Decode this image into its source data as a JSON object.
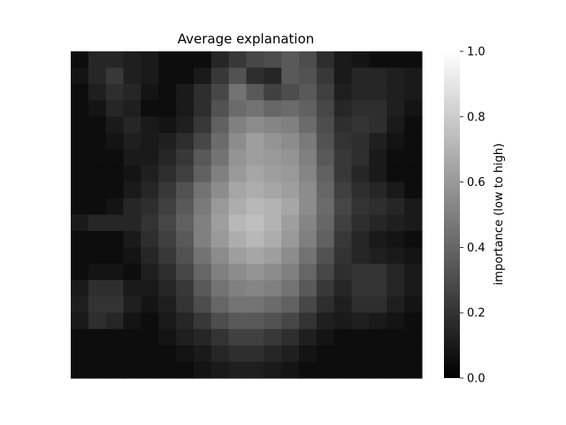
{
  "chart_data": {
    "type": "heatmap",
    "title": "Average explanation",
    "xlabel": "",
    "ylabel": "",
    "grid": false,
    "colormap": "gray",
    "color_low": "#000000",
    "color_high": "#ffffff",
    "colorbar": {
      "label": "importance (low to high)",
      "range": [
        0.0,
        1.0
      ],
      "ticks": [
        0.0,
        0.2,
        0.4,
        0.6,
        0.8,
        1.0
      ],
      "tick_labels": [
        "0.0",
        "0.2",
        "0.4",
        "0.6",
        "0.8",
        "1.0"
      ],
      "placement": "right"
    },
    "grid_rows": 20,
    "grid_cols": 20,
    "values": [
      [
        0.05,
        0.15,
        0.15,
        0.12,
        0.1,
        0.05,
        0.05,
        0.05,
        0.15,
        0.22,
        0.28,
        0.3,
        0.35,
        0.3,
        0.18,
        0.1,
        0.08,
        0.05,
        0.05,
        0.05
      ],
      [
        0.08,
        0.15,
        0.22,
        0.12,
        0.1,
        0.05,
        0.05,
        0.1,
        0.22,
        0.32,
        0.18,
        0.15,
        0.35,
        0.32,
        0.22,
        0.1,
        0.15,
        0.15,
        0.12,
        0.1
      ],
      [
        0.05,
        0.12,
        0.18,
        0.15,
        0.08,
        0.05,
        0.1,
        0.18,
        0.28,
        0.45,
        0.35,
        0.25,
        0.3,
        0.35,
        0.25,
        0.12,
        0.15,
        0.15,
        0.12,
        0.1
      ],
      [
        0.05,
        0.08,
        0.15,
        0.12,
        0.05,
        0.05,
        0.1,
        0.18,
        0.32,
        0.42,
        0.45,
        0.4,
        0.42,
        0.38,
        0.28,
        0.15,
        0.18,
        0.18,
        0.12,
        0.08
      ],
      [
        0.05,
        0.05,
        0.1,
        0.15,
        0.1,
        0.08,
        0.12,
        0.22,
        0.38,
        0.5,
        0.55,
        0.52,
        0.5,
        0.42,
        0.3,
        0.18,
        0.2,
        0.18,
        0.1,
        0.05
      ],
      [
        0.05,
        0.05,
        0.08,
        0.12,
        0.1,
        0.12,
        0.18,
        0.28,
        0.42,
        0.55,
        0.62,
        0.58,
        0.55,
        0.48,
        0.32,
        0.2,
        0.18,
        0.12,
        0.08,
        0.05
      ],
      [
        0.05,
        0.05,
        0.05,
        0.1,
        0.1,
        0.15,
        0.22,
        0.35,
        0.45,
        0.58,
        0.62,
        0.6,
        0.58,
        0.5,
        0.35,
        0.22,
        0.18,
        0.1,
        0.05,
        0.05
      ],
      [
        0.05,
        0.05,
        0.05,
        0.08,
        0.12,
        0.18,
        0.25,
        0.38,
        0.5,
        0.6,
        0.65,
        0.62,
        0.6,
        0.52,
        0.38,
        0.22,
        0.15,
        0.1,
        0.05,
        0.05
      ],
      [
        0.05,
        0.05,
        0.05,
        0.1,
        0.15,
        0.22,
        0.32,
        0.45,
        0.55,
        0.65,
        0.68,
        0.65,
        0.62,
        0.55,
        0.4,
        0.25,
        0.18,
        0.15,
        0.1,
        0.05
      ],
      [
        0.05,
        0.05,
        0.08,
        0.15,
        0.18,
        0.25,
        0.35,
        0.48,
        0.6,
        0.68,
        0.72,
        0.7,
        0.65,
        0.55,
        0.42,
        0.28,
        0.2,
        0.18,
        0.15,
        0.1
      ],
      [
        0.1,
        0.15,
        0.15,
        0.15,
        0.2,
        0.28,
        0.38,
        0.5,
        0.62,
        0.72,
        0.75,
        0.7,
        0.62,
        0.52,
        0.4,
        0.25,
        0.18,
        0.15,
        0.12,
        0.1
      ],
      [
        0.05,
        0.05,
        0.05,
        0.1,
        0.18,
        0.25,
        0.35,
        0.5,
        0.6,
        0.68,
        0.72,
        0.68,
        0.6,
        0.5,
        0.38,
        0.22,
        0.15,
        0.1,
        0.08,
        0.05
      ],
      [
        0.05,
        0.05,
        0.05,
        0.08,
        0.15,
        0.22,
        0.32,
        0.45,
        0.55,
        0.62,
        0.65,
        0.62,
        0.55,
        0.45,
        0.32,
        0.2,
        0.15,
        0.12,
        0.1,
        0.08
      ],
      [
        0.05,
        0.08,
        0.08,
        0.05,
        0.12,
        0.18,
        0.28,
        0.4,
        0.5,
        0.55,
        0.58,
        0.55,
        0.5,
        0.4,
        0.28,
        0.18,
        0.2,
        0.2,
        0.15,
        0.1
      ],
      [
        0.1,
        0.18,
        0.18,
        0.1,
        0.1,
        0.15,
        0.22,
        0.35,
        0.45,
        0.5,
        0.52,
        0.5,
        0.45,
        0.35,
        0.22,
        0.15,
        0.2,
        0.2,
        0.15,
        0.1
      ],
      [
        0.12,
        0.2,
        0.2,
        0.12,
        0.08,
        0.12,
        0.2,
        0.3,
        0.4,
        0.45,
        0.45,
        0.42,
        0.38,
        0.28,
        0.18,
        0.12,
        0.18,
        0.18,
        0.12,
        0.08
      ],
      [
        0.1,
        0.18,
        0.15,
        0.08,
        0.05,
        0.1,
        0.15,
        0.22,
        0.3,
        0.35,
        0.35,
        0.32,
        0.28,
        0.2,
        0.12,
        0.1,
        0.12,
        0.1,
        0.08,
        0.05
      ],
      [
        0.05,
        0.05,
        0.05,
        0.05,
        0.05,
        0.08,
        0.12,
        0.15,
        0.2,
        0.25,
        0.25,
        0.22,
        0.18,
        0.12,
        0.08,
        0.05,
        0.05,
        0.05,
        0.05,
        0.05
      ],
      [
        0.05,
        0.05,
        0.05,
        0.05,
        0.05,
        0.05,
        0.08,
        0.1,
        0.15,
        0.18,
        0.18,
        0.15,
        0.12,
        0.08,
        0.05,
        0.05,
        0.05,
        0.05,
        0.05,
        0.05
      ],
      [
        0.05,
        0.05,
        0.05,
        0.05,
        0.05,
        0.05,
        0.05,
        0.08,
        0.1,
        0.12,
        0.12,
        0.1,
        0.08,
        0.05,
        0.05,
        0.05,
        0.05,
        0.05,
        0.05,
        0.05
      ]
    ]
  }
}
